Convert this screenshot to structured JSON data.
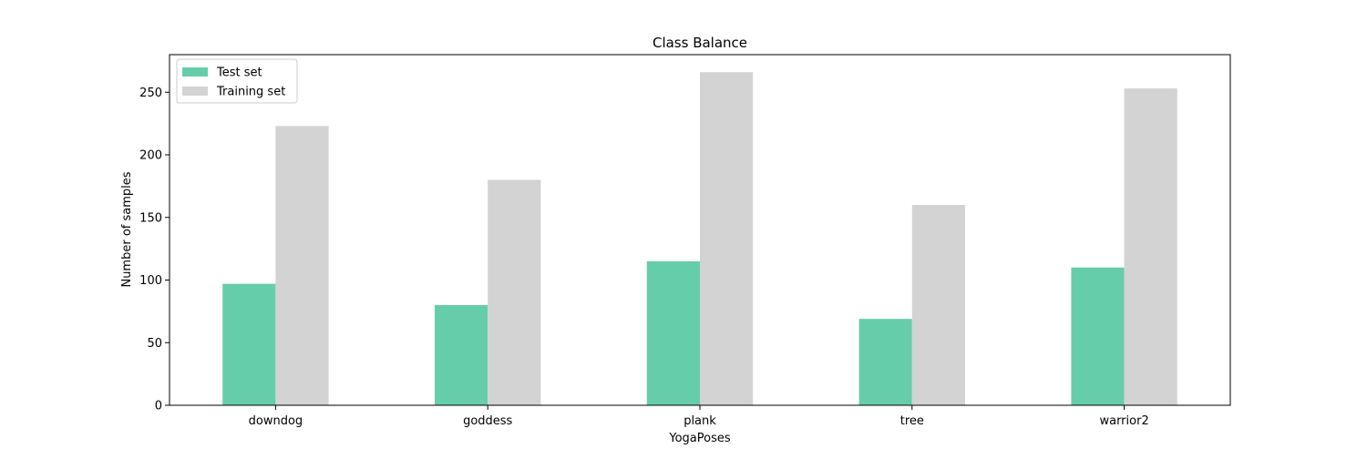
{
  "chart_data": {
    "type": "bar",
    "title": "Class Balance",
    "xlabel": "YogaPoses",
    "ylabel": "Number of samples",
    "categories": [
      "downdog",
      "goddess",
      "plank",
      "tree",
      "warrior2"
    ],
    "series": [
      {
        "name": "Test set",
        "values": [
          97,
          80,
          115,
          69,
          110
        ],
        "color": "#66cdaa"
      },
      {
        "name": "Training set",
        "values": [
          223,
          180,
          266,
          160,
          253
        ],
        "color": "#d3d3d3"
      }
    ],
    "ylim": [
      0,
      280
    ],
    "yticks": [
      0,
      50,
      100,
      150,
      200,
      250
    ],
    "legend_position": "top-left",
    "grid": false
  }
}
